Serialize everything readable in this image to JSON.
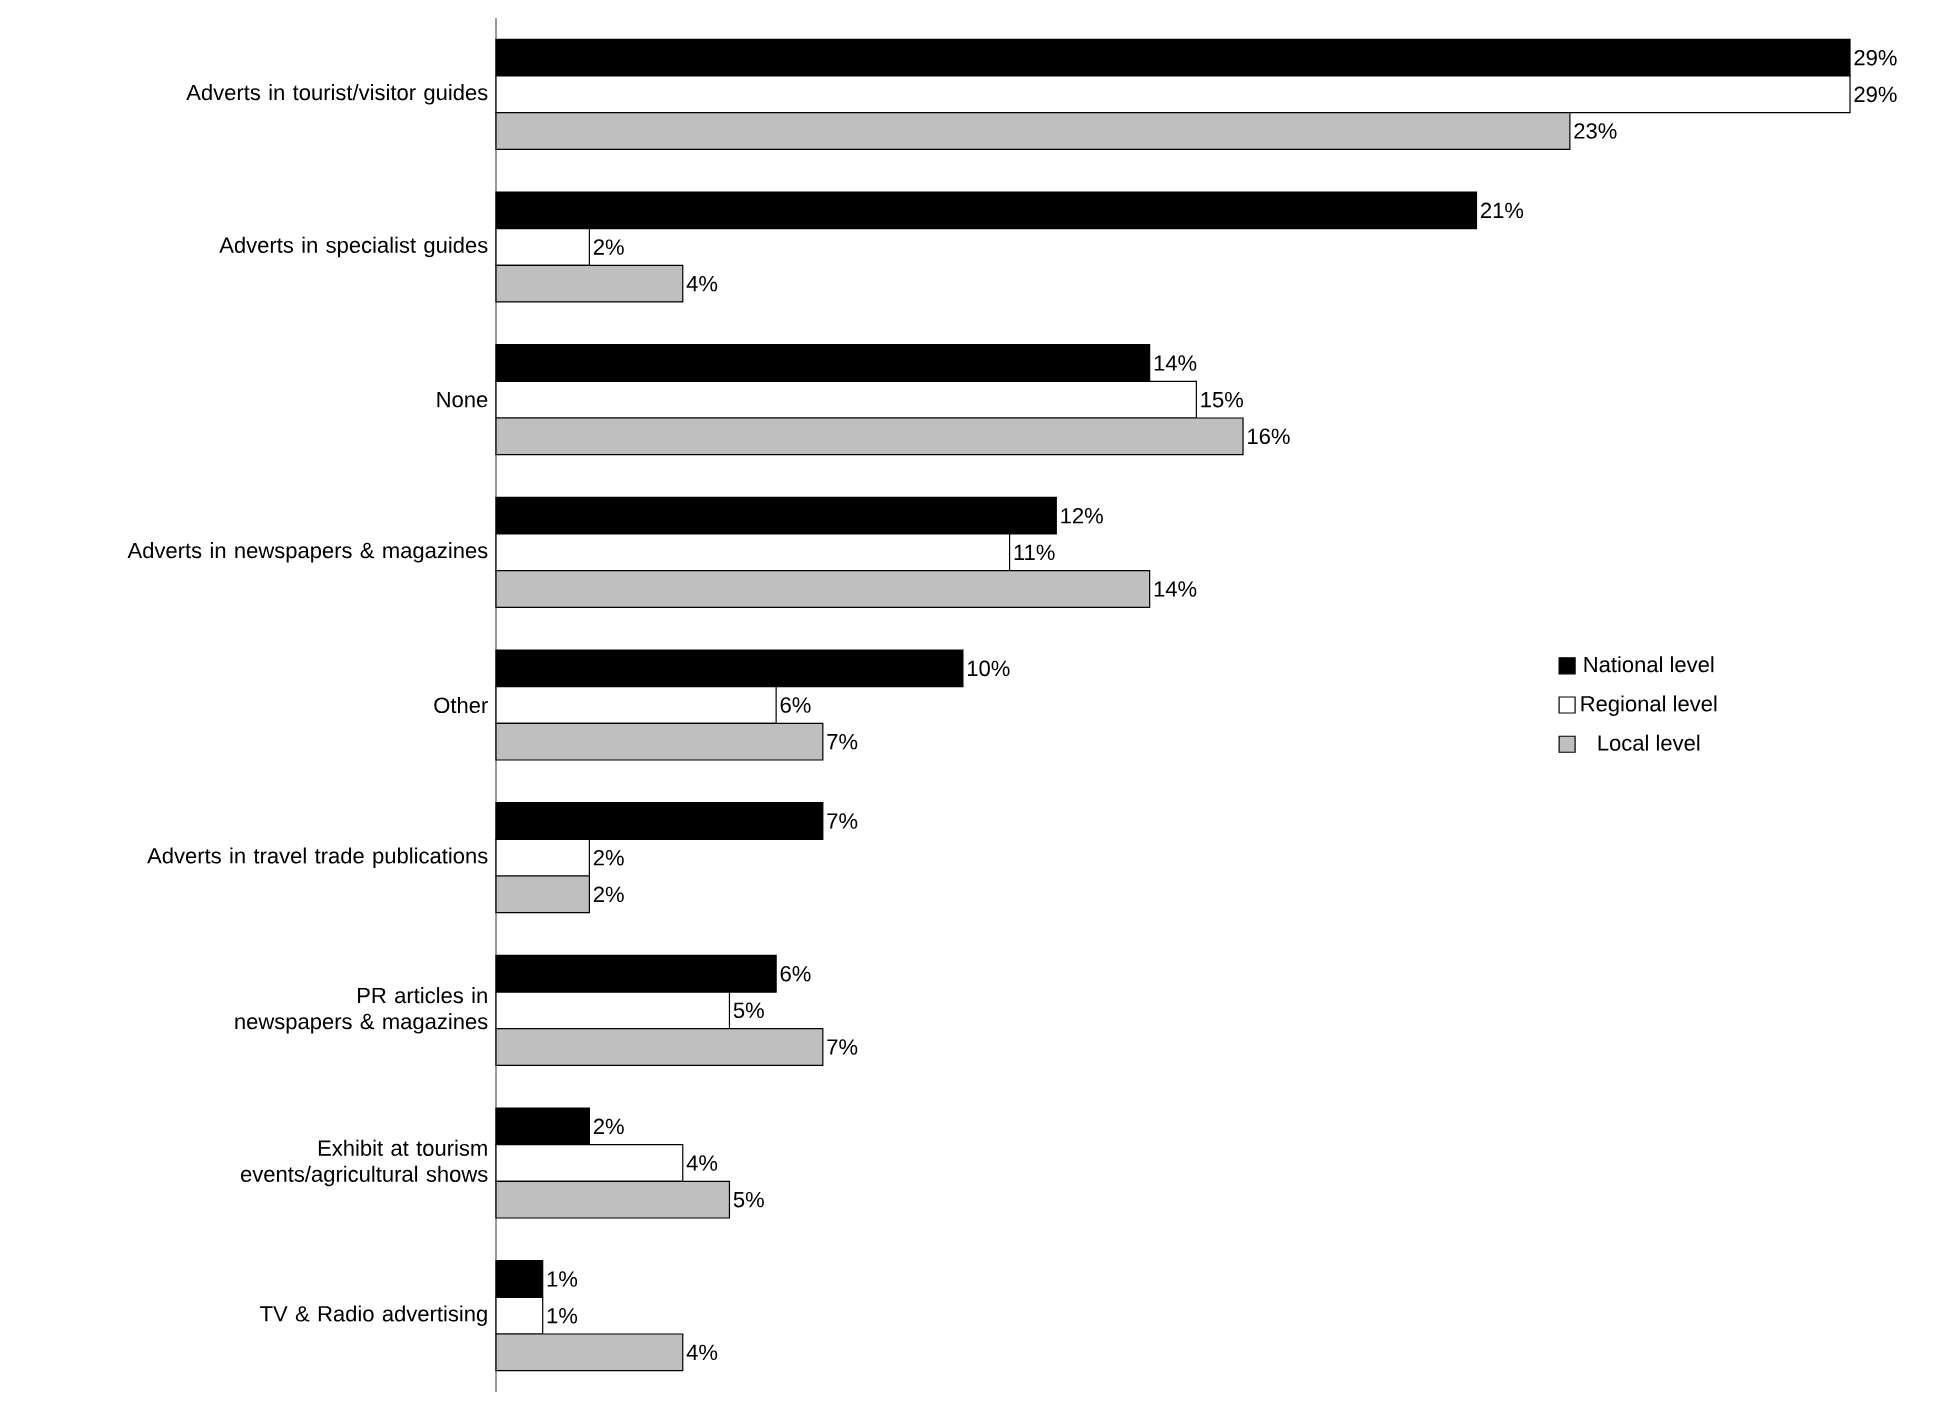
{
  "chart_data": {
    "type": "bar",
    "orientation": "horizontal",
    "categories": [
      "Adverts in tourist/visitor guides",
      "Adverts in specialist guides",
      "None",
      "Adverts in newspapers & magazines",
      "Other",
      "Adverts in travel trade publications",
      "PR articles in newspapers & magazines",
      "Exhibit at tourism events/agricultural shows",
      "TV & Radio advertising"
    ],
    "series": [
      {
        "name": "National level",
        "color": "#000000",
        "values": [
          29,
          21,
          14,
          12,
          10,
          7,
          6,
          2,
          1
        ],
        "value_labels": [
          "29%",
          "21%",
          "14%",
          "12%",
          "10%",
          "7%",
          "6%",
          "2%",
          "1%"
        ]
      },
      {
        "name": "Regional level",
        "color": "#ffffff",
        "values": [
          29,
          2,
          15,
          11,
          6,
          2,
          5,
          4,
          1
        ],
        "value_labels": [
          "29%",
          "2%",
          "15%",
          "11%",
          "6%",
          "2%",
          "5%",
          "4%",
          "1%"
        ]
      },
      {
        "name": "Local level",
        "color": "#bfbfbf",
        "values": [
          23,
          4,
          16,
          14,
          7,
          2,
          7,
          5,
          4
        ],
        "value_labels": [
          "23%",
          "4%",
          "16%",
          "14%",
          "7%",
          "2%",
          "7%",
          "5%",
          "4%"
        ]
      }
    ],
    "xlim": [
      0,
      29
    ],
    "tick_labels": "y",
    "legend": "right"
  }
}
